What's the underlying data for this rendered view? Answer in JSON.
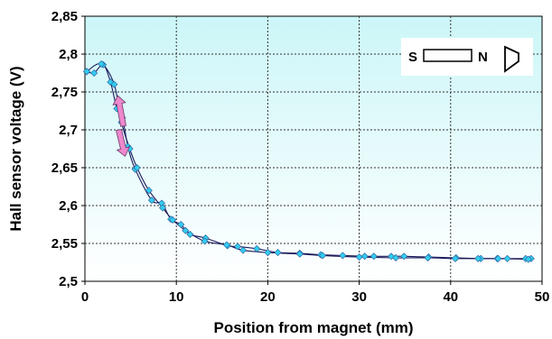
{
  "chart_data": {
    "type": "scatter",
    "title": "",
    "xlabel": "Position from magnet (mm)",
    "ylabel": "Hall sensor voltage (V)",
    "xlim": [
      0,
      50
    ],
    "ylim": [
      2.5,
      2.85
    ],
    "x_ticks": [
      "0",
      "10",
      "20",
      "30",
      "40",
      "50"
    ],
    "y_ticks": [
      "2,5",
      "2,55",
      "2,6",
      "2,65",
      "2,7",
      "2,75",
      "2,8",
      "2,85"
    ],
    "x_tick_values": [
      0,
      10,
      20,
      30,
      40,
      50
    ],
    "y_tick_values": [
      2.5,
      2.55,
      2.6,
      2.65,
      2.7,
      2.75,
      2.8,
      2.85
    ],
    "grid": true,
    "marker_color": "#33ccee",
    "arrow_color": "#ee88cc",
    "plot_bg_top": "#ccf6f8",
    "plot_bg_bottom": "#ffffff",
    "series": [
      {
        "points": [
          [
            0.2,
            2.777
          ],
          [
            1.0,
            2.775
          ],
          [
            2.0,
            2.786
          ],
          [
            2.8,
            2.763
          ],
          [
            3.5,
            2.728
          ],
          [
            4.1,
            2.716
          ],
          [
            4.7,
            2.678
          ],
          [
            5.5,
            2.648
          ],
          [
            7.3,
            2.607
          ],
          [
            8.4,
            2.603
          ],
          [
            9.4,
            2.582
          ],
          [
            10.5,
            2.575
          ],
          [
            11.5,
            2.562
          ],
          [
            13.2,
            2.557
          ],
          [
            15.6,
            2.547
          ],
          [
            16.7,
            2.546
          ],
          [
            18.8,
            2.543
          ],
          [
            21.1,
            2.538
          ],
          [
            23.5,
            2.537
          ],
          [
            25.8,
            2.535
          ],
          [
            28.2,
            2.534
          ],
          [
            30.6,
            2.533
          ],
          [
            31.6,
            2.533
          ],
          [
            33.5,
            2.533
          ],
          [
            34.9,
            2.533
          ],
          [
            37.6,
            2.532
          ],
          [
            40.6,
            2.531
          ],
          [
            43.3,
            2.53
          ],
          [
            45.1,
            2.53
          ],
          [
            46.2,
            2.53
          ],
          [
            48.2,
            2.53
          ],
          [
            48.8,
            2.53
          ]
        ]
      },
      {
        "points": [
          [
            0.2,
            2.777
          ],
          [
            1.8,
            2.787
          ],
          [
            3.2,
            2.76
          ],
          [
            4.0,
            2.71
          ],
          [
            4.9,
            2.675
          ],
          [
            5.7,
            2.65
          ],
          [
            7.0,
            2.62
          ],
          [
            8.5,
            2.597
          ],
          [
            9.6,
            2.581
          ],
          [
            11.0,
            2.567
          ],
          [
            13.1,
            2.553
          ],
          [
            15.5,
            2.548
          ],
          [
            17.3,
            2.541
          ],
          [
            20.0,
            2.538
          ],
          [
            23.5,
            2.536
          ],
          [
            26.0,
            2.534
          ],
          [
            30.0,
            2.532
          ],
          [
            34.0,
            2.531
          ],
          [
            37.5,
            2.531
          ],
          [
            40.5,
            2.53
          ],
          [
            43.0,
            2.53
          ],
          [
            45.2,
            2.53
          ],
          [
            48.5,
            2.529
          ]
        ]
      }
    ],
    "arrows": [
      {
        "direction": "up",
        "x_from": 4.2,
        "y_from": 2.705,
        "x_to": 3.6,
        "y_to": 2.745
      },
      {
        "direction": "down",
        "x_from": 3.7,
        "y_from": 2.7,
        "x_to": 4.4,
        "y_to": 2.665
      }
    ],
    "legend": {
      "position": "top-right",
      "left_label": "S",
      "right_label": "N"
    }
  }
}
